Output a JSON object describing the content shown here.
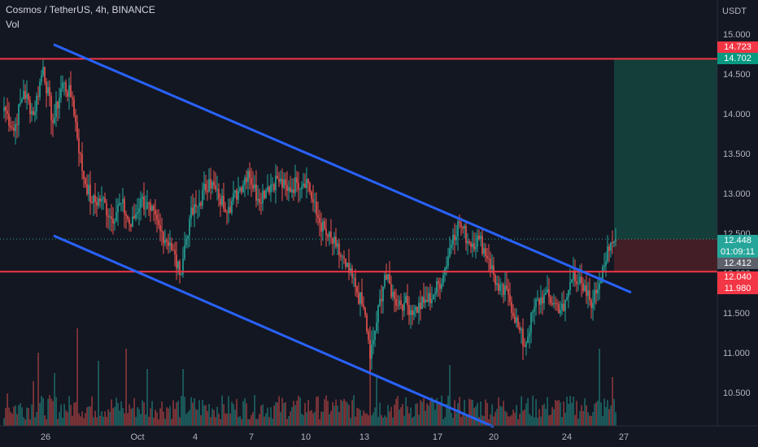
{
  "header": {
    "title": "Cosmos / TetherUS, 4h, BINANCE",
    "volume_label": "Vol"
  },
  "axis": {
    "currency": "USDT",
    "y_ticks": [
      "15.000",
      "14.500",
      "14.000",
      "13.500",
      "13.000",
      "12.500",
      "12.000",
      "11.500",
      "11.000",
      "10.500"
    ],
    "x_ticks": [
      "26",
      "Oct",
      "4",
      "7",
      "10",
      "13",
      "17",
      "20",
      "24",
      "27"
    ]
  },
  "price_tags": {
    "target_top": "14.723",
    "target": "14.702",
    "last_price": "12.448",
    "countdown": "01:09:11",
    "prev_close": "12.412",
    "stop_top": "12.040",
    "stop": "11.980"
  },
  "colors": {
    "background": "#131722",
    "up": "#26a69a",
    "down": "#ef5350",
    "channel": "#2962ff",
    "level": "#f23645",
    "profit_zone": "#154c42",
    "loss_zone": "#4a1f27"
  },
  "chart_data": {
    "type": "candlestick",
    "symbol": "ATOM/USDT",
    "interval": "4h",
    "ylim": [
      10.1,
      15.2
    ],
    "x_labels": [
      "26",
      "Oct",
      "4",
      "7",
      "10",
      "13",
      "17",
      "20",
      "24",
      "27"
    ],
    "horizontal_levels": [
      14.702,
      12.04
    ],
    "channel_upper": [
      [
        14.88,
        11.78
      ]
    ],
    "channel_lower": [
      [
        12.49,
        10.1
      ]
    ],
    "long_position": {
      "entry": 12.448,
      "target": 14.702,
      "stop": 12.04
    },
    "close_anchors": [
      [
        0,
        14.1
      ],
      [
        6,
        13.8
      ],
      [
        12,
        14.3
      ],
      [
        18,
        14.0
      ],
      [
        24,
        14.6
      ],
      [
        30,
        13.9
      ],
      [
        36,
        14.4
      ],
      [
        42,
        14.2
      ],
      [
        48,
        13.3
      ],
      [
        54,
        12.9
      ],
      [
        60,
        12.95
      ],
      [
        66,
        12.7
      ],
      [
        72,
        12.9
      ],
      [
        78,
        12.6
      ],
      [
        84,
        12.95
      ],
      [
        90,
        12.8
      ],
      [
        96,
        12.55
      ],
      [
        102,
        12.4
      ],
      [
        108,
        12.0
      ],
      [
        114,
        12.7
      ],
      [
        120,
        12.9
      ],
      [
        126,
        13.2
      ],
      [
        132,
        12.95
      ],
      [
        138,
        12.85
      ],
      [
        144,
        13.05
      ],
      [
        150,
        13.3
      ],
      [
        156,
        12.95
      ],
      [
        162,
        13.1
      ],
      [
        168,
        13.2
      ],
      [
        174,
        13.05
      ],
      [
        180,
        13.15
      ],
      [
        186,
        13.2
      ],
      [
        192,
        12.75
      ],
      [
        198,
        12.5
      ],
      [
        204,
        12.35
      ],
      [
        210,
        12.1
      ],
      [
        216,
        11.85
      ],
      [
        222,
        11.5
      ],
      [
        225,
        10.95
      ],
      [
        228,
        11.3
      ],
      [
        234,
        12.0
      ],
      [
        240,
        11.7
      ],
      [
        246,
        11.65
      ],
      [
        252,
        11.55
      ],
      [
        258,
        11.65
      ],
      [
        264,
        11.75
      ],
      [
        270,
        12.0
      ],
      [
        276,
        12.5
      ],
      [
        280,
        12.65
      ],
      [
        286,
        12.4
      ],
      [
        292,
        12.45
      ],
      [
        298,
        12.2
      ],
      [
        304,
        11.8
      ],
      [
        310,
        11.75
      ],
      [
        316,
        11.35
      ],
      [
        320,
        11.1
      ],
      [
        326,
        11.6
      ],
      [
        332,
        11.75
      ],
      [
        338,
        11.65
      ],
      [
        344,
        11.55
      ],
      [
        350,
        12.05
      ],
      [
        356,
        11.8
      ],
      [
        362,
        11.65
      ],
      [
        368,
        12.1
      ],
      [
        372,
        12.3
      ],
      [
        376,
        12.448
      ]
    ],
    "volume_description": "per-candle volume bars under price, mostly low with spikes near early candles, mid-October low and latest candles"
  }
}
